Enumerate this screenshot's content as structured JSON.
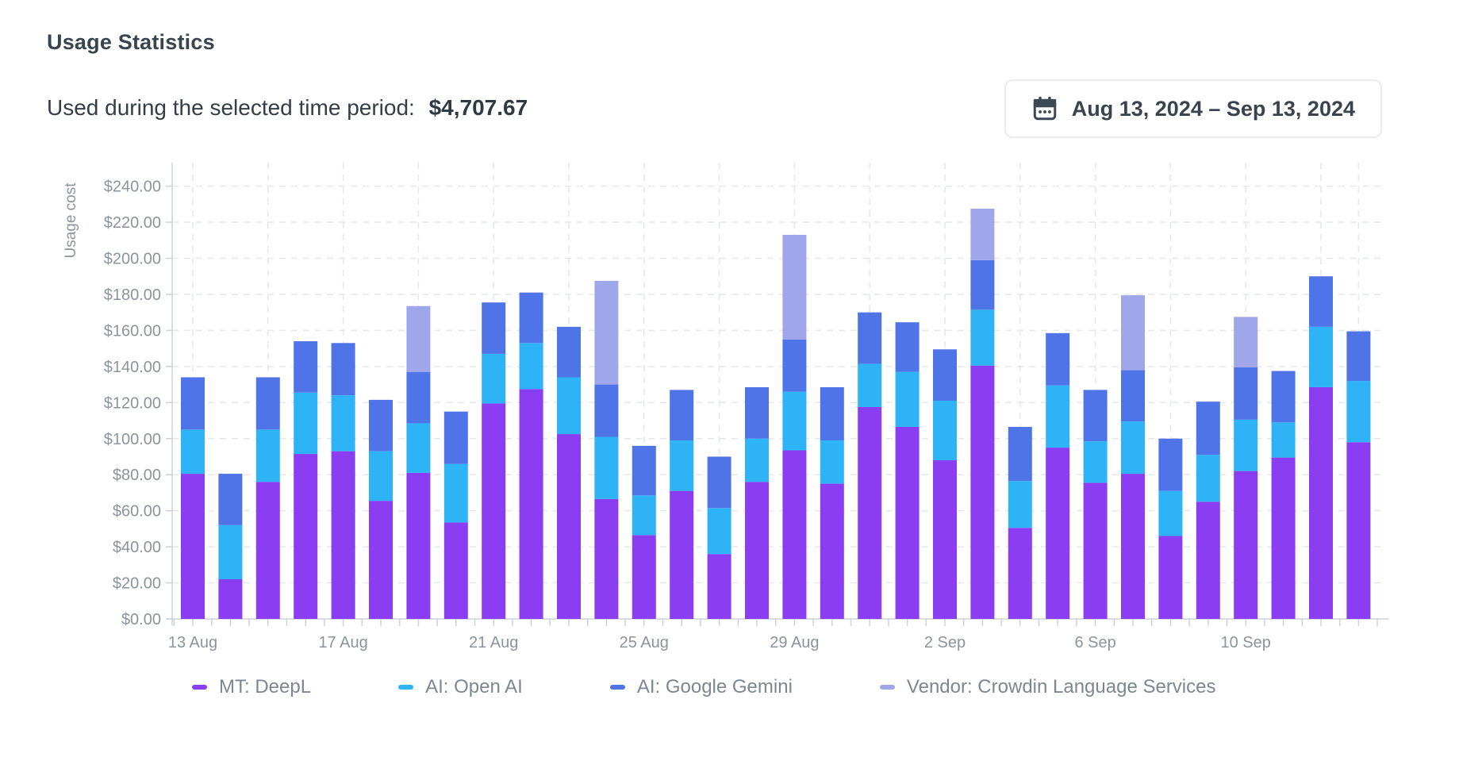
{
  "header": {
    "title": "Usage Statistics",
    "period_label": "Used during the selected time period:",
    "period_value": "$4,707.67",
    "date_range": "Aug 13, 2024 – Sep 13, 2024",
    "calendar_icon_color": "#3c4852"
  },
  "chart_data": {
    "type": "bar",
    "stacked": true,
    "title": "",
    "xlabel": "",
    "ylabel": "Usage cost",
    "currency": "USD",
    "ylim": [
      0,
      253
    ],
    "ytick_step": 20,
    "ytick_labels": [
      "$0.00",
      "$20.00",
      "$40.00",
      "$60.00",
      "$80.00",
      "$100.00",
      "$120.00",
      "$140.00",
      "$160.00",
      "$180.00",
      "$200.00",
      "$220.00",
      "$240.00"
    ],
    "grid": "dashed",
    "legend_position": "bottom",
    "categories": [
      "13 Aug",
      "14 Aug",
      "15 Aug",
      "16 Aug",
      "17 Aug",
      "18 Aug",
      "19 Aug",
      "20 Aug",
      "21 Aug",
      "22 Aug",
      "23 Aug",
      "24 Aug",
      "25 Aug",
      "26 Aug",
      "27 Aug",
      "28 Aug",
      "29 Aug",
      "30 Aug",
      "31 Aug",
      "1 Sep",
      "2 Sep",
      "3 Sep",
      "4 Sep",
      "5 Sep",
      "6 Sep",
      "7 Sep",
      "8 Sep",
      "9 Sep",
      "10 Sep",
      "11 Sep",
      "12 Sep",
      "13 Sep"
    ],
    "xtick_labels_shown": [
      "13 Aug",
      "17 Aug",
      "21 Aug",
      "25 Aug",
      "29 Aug",
      "2 Sep",
      "6 Sep",
      "10 Sep"
    ],
    "series": [
      {
        "name": "MT: DeepL",
        "color": "#8b3df2",
        "values": [
          80.5,
          22,
          76,
          91.5,
          93,
          65.5,
          81,
          53.5,
          119.5,
          127.5,
          102.5,
          66.5,
          46.5,
          71,
          36,
          76,
          93.5,
          75,
          117.5,
          106.5,
          88,
          140.5,
          50.5,
          95,
          75.5,
          80.5,
          46,
          65,
          82,
          89.5,
          128.5,
          98
        ]
      },
      {
        "name": "AI: Open AI",
        "color": "#2fb3f7",
        "values": [
          24.5,
          30,
          29,
          34,
          31,
          27.5,
          27.5,
          32.5,
          27.5,
          25.5,
          31.5,
          34.5,
          22,
          28,
          25.5,
          24,
          32.5,
          24,
          24,
          30.5,
          33,
          31,
          26,
          34.5,
          23,
          29,
          25,
          26,
          28.5,
          19.5,
          33.5,
          34
        ]
      },
      {
        "name": "AI: Google Gemini",
        "color": "#4f74e8",
        "values": [
          29,
          28.5,
          29,
          28.5,
          29,
          28.5,
          28.5,
          29,
          28.5,
          28,
          28,
          29,
          27.5,
          28,
          28.5,
          28.5,
          29,
          29.5,
          28.5,
          27.5,
          28.5,
          27.5,
          30,
          29,
          28.5,
          28.5,
          29,
          29.5,
          29,
          28.5,
          28,
          27.5
        ]
      },
      {
        "name": "Vendor: Crowdin Language Services",
        "color": "#9fa6ea",
        "values": [
          0,
          0,
          0,
          0,
          0,
          0,
          36.5,
          0,
          0,
          0,
          0,
          57.5,
          0,
          0,
          0,
          0,
          58,
          0,
          0,
          0,
          0,
          28.5,
          0,
          0,
          0,
          41.5,
          0,
          0,
          28,
          0,
          0,
          0
        ]
      }
    ]
  }
}
